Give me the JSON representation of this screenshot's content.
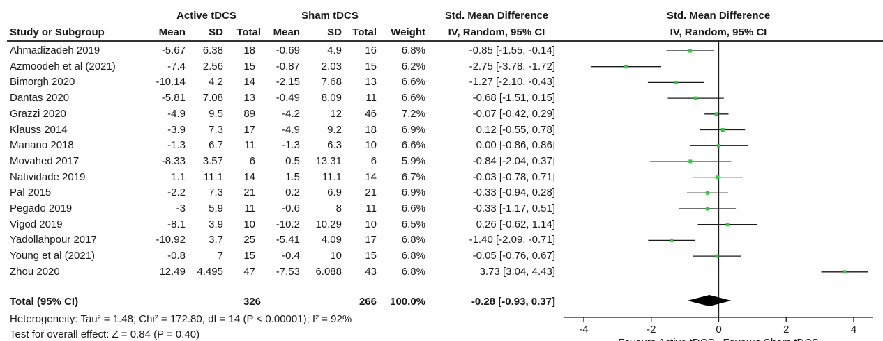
{
  "headers": {
    "group_active": "Active tDCS",
    "group_sham": "Sham tDCS",
    "effect_title": "Std. Mean Difference",
    "effect_sub": "IV, Random, 95% CI",
    "plot_title": "Std. Mean Difference",
    "plot_sub": "IV, Random, 95% CI",
    "study": "Study or Subgroup",
    "mean": "Mean",
    "sd": "SD",
    "total": "Total",
    "weight": "Weight"
  },
  "studies": [
    {
      "name": "Ahmadizadeh 2019",
      "a_mean": "-5.67",
      "a_sd": "6.38",
      "a_total": "18",
      "s_mean": "-0.69",
      "s_sd": "4.9",
      "s_total": "16",
      "weight": "6.8%",
      "ci_text": "-0.85 [-1.55, -0.14]"
    },
    {
      "name": "Azmoodeh et al (2021)",
      "a_mean": "-7.4",
      "a_sd": "2.56",
      "a_total": "15",
      "s_mean": "-0.87",
      "s_sd": "2.03",
      "s_total": "15",
      "weight": "6.2%",
      "ci_text": "-2.75 [-3.78, -1.72]"
    },
    {
      "name": "Bimorgh 2020",
      "a_mean": "-10.14",
      "a_sd": "4.2",
      "a_total": "14",
      "s_mean": "-2.15",
      "s_sd": "7.68",
      "s_total": "13",
      "weight": "6.6%",
      "ci_text": "-1.27 [-2.10, -0.43]"
    },
    {
      "name": "Dantas 2020",
      "a_mean": "-5.81",
      "a_sd": "7.08",
      "a_total": "13",
      "s_mean": "-0.49",
      "s_sd": "8.09",
      "s_total": "11",
      "weight": "6.6%",
      "ci_text": "-0.68 [-1.51, 0.15]"
    },
    {
      "name": "Grazzi 2020",
      "a_mean": "-4.9",
      "a_sd": "9.5",
      "a_total": "89",
      "s_mean": "-4.2",
      "s_sd": "12",
      "s_total": "46",
      "weight": "7.2%",
      "ci_text": "-0.07 [-0.42, 0.29]"
    },
    {
      "name": "Klauss 2014",
      "a_mean": "-3.9",
      "a_sd": "7.3",
      "a_total": "17",
      "s_mean": "-4.9",
      "s_sd": "9.2",
      "s_total": "18",
      "weight": "6.9%",
      "ci_text": "0.12 [-0.55, 0.78]"
    },
    {
      "name": "Mariano 2018",
      "a_mean": "-1.3",
      "a_sd": "6.7",
      "a_total": "11",
      "s_mean": "-1.3",
      "s_sd": "6.3",
      "s_total": "10",
      "weight": "6.6%",
      "ci_text": "0.00 [-0.86, 0.86]"
    },
    {
      "name": "Movahed 2017",
      "a_mean": "-8.33",
      "a_sd": "3.57",
      "a_total": "6",
      "s_mean": "0.5",
      "s_sd": "13.31",
      "s_total": "6",
      "weight": "5.9%",
      "ci_text": "-0.84 [-2.04, 0.37]"
    },
    {
      "name": "Natividade 2019",
      "a_mean": "1.1",
      "a_sd": "11.1",
      "a_total": "14",
      "s_mean": "1.5",
      "s_sd": "11.1",
      "s_total": "14",
      "weight": "6.7%",
      "ci_text": "-0.03 [-0.78, 0.71]"
    },
    {
      "name": "Pal 2015",
      "a_mean": "-2.2",
      "a_sd": "7.3",
      "a_total": "21",
      "s_mean": "0.2",
      "s_sd": "6.9",
      "s_total": "21",
      "weight": "6.9%",
      "ci_text": "-0.33 [-0.94, 0.28]"
    },
    {
      "name": "Pegado 2019",
      "a_mean": "-3",
      "a_sd": "5.9",
      "a_total": "11",
      "s_mean": "-0.6",
      "s_sd": "8",
      "s_total": "11",
      "weight": "6.6%",
      "ci_text": "-0.33 [-1.17, 0.51]"
    },
    {
      "name": "Vigod 2019",
      "a_mean": "-8.1",
      "a_sd": "3.9",
      "a_total": "10",
      "s_mean": "-10.2",
      "s_sd": "10.29",
      "s_total": "10",
      "weight": "6.5%",
      "ci_text": "0.26 [-0.62, 1.14]"
    },
    {
      "name": "Yadollahpour 2017",
      "a_mean": "-10.92",
      "a_sd": "3.7",
      "a_total": "25",
      "s_mean": "-5.41",
      "s_sd": "4.09",
      "s_total": "17",
      "weight": "6.8%",
      "ci_text": "-1.40 [-2.09, -0.71]"
    },
    {
      "name": "Young et al (2021)",
      "a_mean": "-0.8",
      "a_sd": "7",
      "a_total": "15",
      "s_mean": "-0.4",
      "s_sd": "10",
      "s_total": "15",
      "weight": "6.8%",
      "ci_text": "-0.05 [-0.76, 0.67]"
    },
    {
      "name": "Zhou 2020",
      "a_mean": "12.49",
      "a_sd": "4.495",
      "a_total": "47",
      "s_mean": "-7.53",
      "s_sd": "6.088",
      "s_total": "43",
      "weight": "6.8%",
      "ci_text": "3.73 [3.04, 4.43]"
    }
  ],
  "total": {
    "label": "Total (95% CI)",
    "a_total": "326",
    "s_total": "266",
    "weight": "100.0%",
    "ci_text": "-0.28 [-0.93, 0.37]"
  },
  "footer": {
    "heterogeneity": "Heterogeneity: Tau² = 1.48; Chi² = 172.80, df = 14 (P < 0.00001); I² = 92%",
    "overall": "Test for overall effect: Z = 0.84 (P = 0.40)"
  },
  "colors": {
    "marker": "#2ecc40",
    "line": "#1a1a1a",
    "diamond": "#000000"
  },
  "chart_data": {
    "type": "forest",
    "axis": {
      "ticks": [
        -4,
        -2,
        0,
        2,
        4
      ],
      "tick_labels": [
        "-4",
        "-2",
        "0",
        "2",
        "4"
      ],
      "xlim": [
        -4,
        4
      ],
      "label_left": "Favours Active tDCS",
      "label_right": "Favours Sham tDCS"
    },
    "points": [
      {
        "est": -0.85,
        "lo": -1.55,
        "hi": -0.14
      },
      {
        "est": -2.75,
        "lo": -3.78,
        "hi": -1.72
      },
      {
        "est": -1.27,
        "lo": -2.1,
        "hi": -0.43
      },
      {
        "est": -0.68,
        "lo": -1.51,
        "hi": 0.15
      },
      {
        "est": -0.07,
        "lo": -0.42,
        "hi": 0.29
      },
      {
        "est": 0.12,
        "lo": -0.55,
        "hi": 0.78
      },
      {
        "est": 0.0,
        "lo": -0.86,
        "hi": 0.86
      },
      {
        "est": -0.84,
        "lo": -2.04,
        "hi": 0.37
      },
      {
        "est": -0.03,
        "lo": -0.78,
        "hi": 0.71
      },
      {
        "est": -0.33,
        "lo": -0.94,
        "hi": 0.28
      },
      {
        "est": -0.33,
        "lo": -1.17,
        "hi": 0.51
      },
      {
        "est": 0.26,
        "lo": -0.62,
        "hi": 1.14
      },
      {
        "est": -1.4,
        "lo": -2.09,
        "hi": -0.71
      },
      {
        "est": -0.05,
        "lo": -0.76,
        "hi": 0.67
      },
      {
        "est": 3.73,
        "lo": 3.04,
        "hi": 4.43
      }
    ],
    "pooled": {
      "est": -0.28,
      "lo": -0.93,
      "hi": 0.37
    }
  }
}
